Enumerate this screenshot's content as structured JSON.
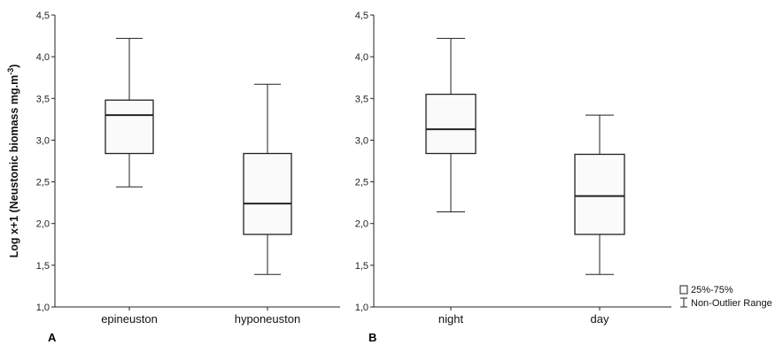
{
  "chart_data": [
    {
      "type": "boxplot",
      "panel_label": "A",
      "ylabel": "Log x+1 (Neustonic biomass mg.m",
      "ylabel_sup": "-3",
      "ylabel_close": ")",
      "ylim": [
        1.0,
        4.5
      ],
      "yticks": [
        "1,0",
        "1,5",
        "2,0",
        "2,5",
        "3,0",
        "3,5",
        "4,0",
        "4,5"
      ],
      "categories": [
        "epineuston",
        "hyponeuston"
      ],
      "boxes": [
        {
          "whisker_low": 2.44,
          "q1": 2.84,
          "median": 3.3,
          "q3": 3.48,
          "whisker_high": 4.22
        },
        {
          "whisker_low": 1.39,
          "q1": 1.87,
          "median": 2.24,
          "q3": 2.84,
          "whisker_high": 3.67
        }
      ]
    },
    {
      "type": "boxplot",
      "panel_label": "B",
      "ylim": [
        1.0,
        4.5
      ],
      "yticks": [
        "1,0",
        "1,5",
        "2,0",
        "2,5",
        "3,0",
        "3,5",
        "4,0",
        "4,5"
      ],
      "categories": [
        "night",
        "day"
      ],
      "boxes": [
        {
          "whisker_low": 2.14,
          "q1": 2.84,
          "median": 3.13,
          "q3": 3.55,
          "whisker_high": 4.22
        },
        {
          "whisker_low": 1.39,
          "q1": 1.87,
          "median": 2.33,
          "q3": 2.83,
          "whisker_high": 3.3
        }
      ]
    }
  ],
  "legend": {
    "box_label": "25%-75%",
    "whisker_label": "Non-Outlier Range"
  },
  "colors": {
    "box_fill": "#fafafa",
    "stroke": "#222222"
  }
}
